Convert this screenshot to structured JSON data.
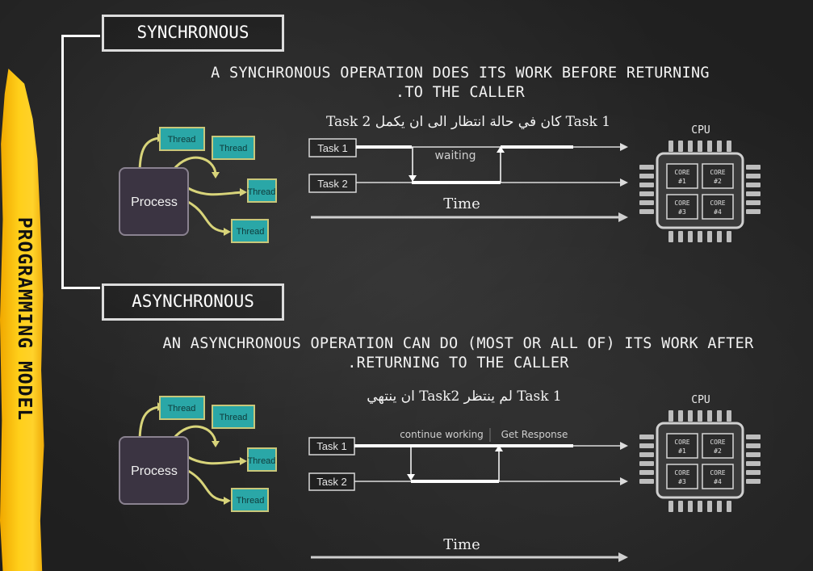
{
  "side_label": "PROGRAMMING MODEL",
  "sync": {
    "title": "SYNCHRONOUS",
    "description_line1": "A SYNCHRONOUS OPERATION DOES ITS WORK BEFORE RETURNING",
    "description_line2": ".TO THE CALLER",
    "note": "Task 1 كان في حالة انتظار الى ان يكمل Task 2",
    "process_label": "Process",
    "thread_labels": [
      "Thread",
      "Thread",
      "Thread",
      "Thread"
    ],
    "task1_label": "Task 1",
    "task2_label": "Task 2",
    "waiting_label": "waiting",
    "time_label": "Time",
    "cpu": {
      "label": "CPU",
      "cores": [
        {
          "name": "CORE",
          "num": "#1"
        },
        {
          "name": "CORE",
          "num": "#2"
        },
        {
          "name": "CORE",
          "num": "#3"
        },
        {
          "name": "CORE",
          "num": "#4"
        }
      ]
    }
  },
  "async": {
    "title": "ASYNCHRONOUS",
    "description_line1": "AN ASYNCHRONOUS OPERATION CAN DO (MOST OR ALL OF) ITS WORK AFTER",
    "description_line2": ".RETURNING TO THE CALLER",
    "note": "Task 1 لم ينتظر Task2 ان ينتهي",
    "process_label": "Process",
    "thread_labels": [
      "Thread",
      "Thread",
      "Thread",
      "Thread"
    ],
    "task1_label": "Task 1",
    "task2_label": "Task 2",
    "continue_label": "continue working",
    "response_label": "Get Response",
    "time_label": "Time",
    "cpu": {
      "label": "CPU",
      "cores": [
        {
          "name": "CORE",
          "num": "#1"
        },
        {
          "name": "CORE",
          "num": "#2"
        },
        {
          "name": "CORE",
          "num": "#3"
        },
        {
          "name": "CORE",
          "num": "#4"
        }
      ]
    }
  },
  "colors": {
    "stripe": "#ffcc14",
    "thread_fill": "#2aa7a7",
    "thread_border": "#c9c77a",
    "process_fill": "#3b3442",
    "connector": "#d8d47a"
  }
}
